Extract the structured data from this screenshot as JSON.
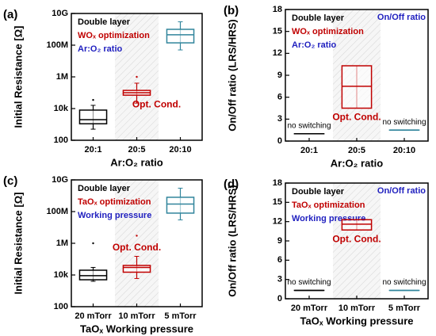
{
  "chart_data": [
    {
      "type": "box",
      "panel_label": "(a)",
      "ylabel": "Initial Resistance [Ω]",
      "xlabel": "Ar:O₂ ratio",
      "log": true,
      "ylim": [
        100,
        10000000000
      ],
      "yticks": [
        100,
        {
          "value": 10000,
          "label": "10k"
        },
        {
          "value": 1000000,
          "label": "1M"
        },
        {
          "value": 100000000,
          "label": "100M"
        },
        {
          "value": 10000000000,
          "label": "10G"
        }
      ],
      "categories": [
        "20:1",
        "20:5",
        "20:10"
      ],
      "notes": [
        "Double layer",
        "WOₓ optimization",
        "Ar:O₂ ratio"
      ],
      "category_notes": [
        null,
        "Opt. Cond.",
        null
      ],
      "boxes": [
        {
          "color": "#000000",
          "min": 500,
          "q1": 1100,
          "median": 2000,
          "q3": 8000,
          "max": 16000,
          "outliers": [
            35000
          ]
        },
        {
          "color": "#c00000",
          "min": 22000,
          "q1": 70000,
          "median": 100000,
          "q3": 140000,
          "max": 400000,
          "outliers": [
            1000000
          ]
        },
        {
          "color": "#31859c",
          "min": 50000000,
          "q1": 140000000,
          "median": 450000000,
          "q3": 1000000000,
          "max": 3000000000,
          "outliers": []
        }
      ]
    },
    {
      "type": "box",
      "panel_label": "(b)",
      "ylabel": "On/Off ratio (LRS/HRS)",
      "xlabel": "Ar:O₂ ratio",
      "log": false,
      "ylim": [
        0,
        18
      ],
      "yticks": [
        0,
        3,
        6,
        9,
        12,
        15,
        18
      ],
      "categories": [
        "20:1",
        "20:5",
        "20:10"
      ],
      "notes": [
        "Double layer",
        "WOₓ optimization",
        "Ar:O₂ ratio"
      ],
      "corner_note": "On/Off ratio",
      "category_notes": [
        "no switching",
        "Opt. Cond.",
        "no switching"
      ],
      "boxes": [
        {
          "color": "#000000",
          "min": 1,
          "q1": 1,
          "median": 1,
          "q3": 1,
          "max": 1,
          "outliers": []
        },
        {
          "color": "#c00000",
          "min": 4.5,
          "q1": 4.5,
          "median": 7.5,
          "q3": 10.3,
          "max": 10.3,
          "outliers": []
        },
        {
          "color": "#31859c",
          "min": 1.5,
          "q1": 1.5,
          "median": 1.5,
          "q3": 1.5,
          "max": 1.5,
          "outliers": []
        }
      ]
    },
    {
      "type": "box",
      "panel_label": "(c)",
      "ylabel": "Initial Resistance [Ω]",
      "xlabel": "TaOₓ Working pressure",
      "log": true,
      "ylim": [
        100,
        10000000000
      ],
      "yticks": [
        100,
        {
          "value": 10000,
          "label": "10k"
        },
        {
          "value": 1000000,
          "label": "1M"
        },
        {
          "value": 100000000,
          "label": "100M"
        },
        {
          "value": 10000000000,
          "label": "10G"
        }
      ],
      "categories": [
        "20 mTorr",
        "10 mTorr",
        "5 mTorr"
      ],
      "notes": [
        "Double layer",
        "TaOₓ optimization",
        "Working pressure"
      ],
      "category_notes": [
        null,
        "Opt. Cond.",
        null
      ],
      "boxes": [
        {
          "color": "#000000",
          "min": 4000,
          "q1": 5000,
          "median": 9000,
          "q3": 20000,
          "max": 30000,
          "outliers": [
            1000000
          ]
        },
        {
          "color": "#c00000",
          "min": 6000,
          "q1": 15000,
          "median": 30000,
          "q3": 40000,
          "max": 150000,
          "outliers": [
            3000000
          ]
        },
        {
          "color": "#31859c",
          "min": 30000000,
          "q1": 80000000,
          "median": 300000000,
          "q3": 800000000,
          "max": 3000000000,
          "outliers": []
        }
      ]
    },
    {
      "type": "box",
      "panel_label": "(d)",
      "ylabel": "On/Off ratio (LRS/HRS)",
      "xlabel": "TaOₓ Working pressure",
      "log": false,
      "ylim": [
        0,
        18
      ],
      "yticks": [
        0,
        3,
        6,
        9,
        12,
        15,
        18
      ],
      "categories": [
        "20 mTorr",
        "10 mTorr",
        "5 mTorr"
      ],
      "notes": [
        "Double layer",
        "TaOₓ optimization",
        "Working pressure"
      ],
      "corner_note": "On/Off ratio",
      "category_notes": [
        "no switching",
        "Opt. Cond.",
        "no switching"
      ],
      "boxes": [
        {
          "color": "#000000",
          "min": 1.3,
          "q1": 1.3,
          "median": 1.3,
          "q3": 1.3,
          "max": 1.3,
          "outliers": []
        },
        {
          "color": "#c00000",
          "min": 10.7,
          "q1": 10.7,
          "median": 11.6,
          "q3": 12.3,
          "max": 12.3,
          "outliers": []
        },
        {
          "color": "#31859c",
          "min": 1.3,
          "q1": 1.3,
          "median": 1.3,
          "q3": 1.3,
          "max": 1.3,
          "outliers": []
        }
      ]
    }
  ]
}
